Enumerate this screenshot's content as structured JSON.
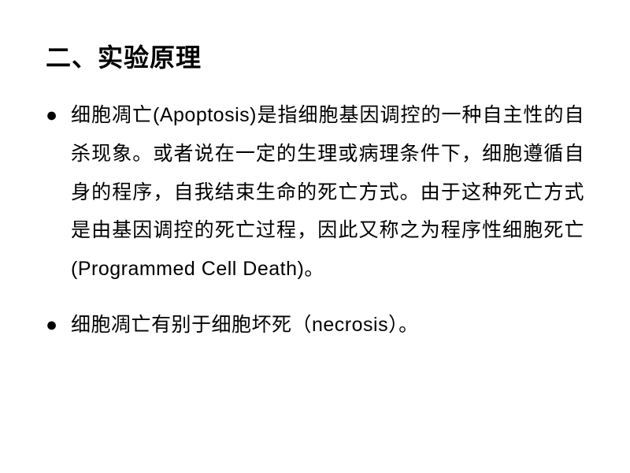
{
  "slide": {
    "background_color": "#ffffff",
    "text_color": "#000000",
    "heading": {
      "text": "二、实验原理",
      "font_size": 32,
      "font_weight": "bold",
      "font_family": "SimHei"
    },
    "bullets": [
      {
        "marker": "●",
        "text": "细胞凋亡(Apoptosis)是指细胞基因调控的一种自主性的自杀现象。或者说在一定的生理或病理条件下，细胞遵循自身的程序，自我结束生命的死亡方式。由于这种死亡方式是由基因调控的死亡过程，因此又称之为程序性细胞死亡(Programmed Cell Death)。"
      },
      {
        "marker": "●",
        "text": "细胞凋亡有别于细胞坏死（necrosis）。"
      }
    ],
    "body_font_size": 25,
    "body_line_height": 1.95,
    "bullet_marker_color": "#000000"
  }
}
